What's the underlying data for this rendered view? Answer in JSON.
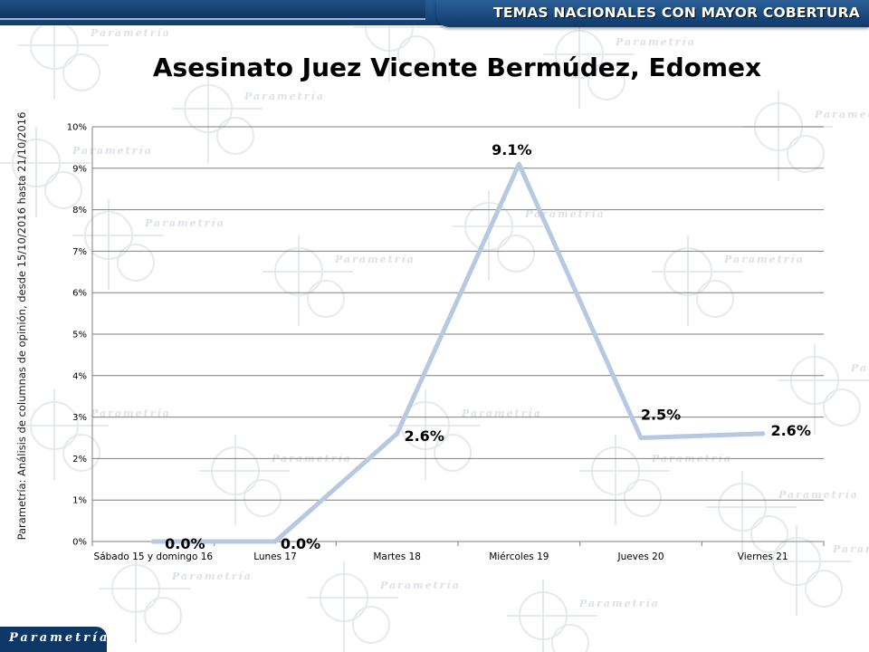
{
  "header": {
    "title": "TEMAS NACIONALES CON MAYOR COBERTURA"
  },
  "side_note": "Parametría: Análisis de columnas de opinión, desde 15/10/2016 hasta 21/10/2016",
  "logo": {
    "text": "Parametría"
  },
  "watermark": {
    "text": "Parametría"
  },
  "colors": {
    "header": "#12457c",
    "line": "#b7c9e2",
    "grid": "#7f7f7f",
    "logo": "#0f3766"
  },
  "chart_data": {
    "type": "line",
    "title": "Asesinato Juez Vicente Bermúdez, Edomex",
    "xlabel": "",
    "ylabel": "",
    "categories": [
      "Sábado 15 y domingo 16",
      "Lunes 17",
      "Martes 18",
      "Miércoles 19",
      "Jueves 20",
      "Viernes 21"
    ],
    "values": [
      0.0,
      0.0,
      2.6,
      9.1,
      2.5,
      2.6
    ],
    "data_labels": [
      "0.0%",
      "0.0%",
      "2.6%",
      "9.1%",
      "2.5%",
      "2.6%"
    ],
    "ylim": [
      0,
      10
    ],
    "yticks": [
      "0%",
      "1%",
      "2%",
      "3%",
      "4%",
      "5%",
      "6%",
      "7%",
      "8%",
      "9%",
      "10%"
    ],
    "grid": true,
    "legend": "none"
  }
}
